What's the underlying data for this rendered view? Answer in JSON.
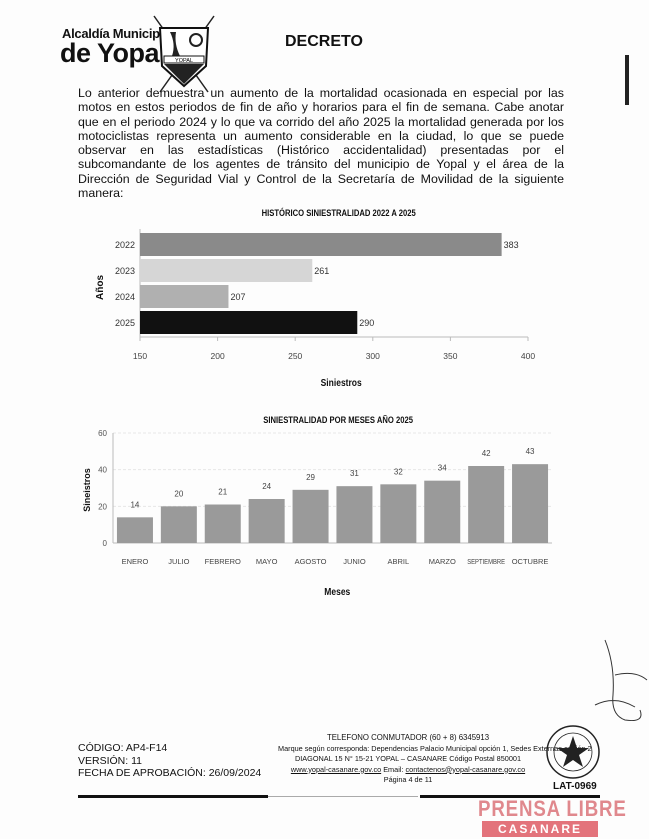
{
  "header": {
    "logo_line1": "Alcaldía Municipal",
    "logo_line2": "de Yopal",
    "shield_text": "YOPAL",
    "title": "DECRETO"
  },
  "body": {
    "paragraph": "Lo anterior demuestra un aumento de la mortalidad ocasionada en especial por las motos en estos periodos de fin de año y horarios para el fin de semana. Cabe anotar que en el periodo 2024 y lo que va corrido del año 2025 la mortalidad generada por los motociclistas representa un aumento considerable en la ciudad, lo que se puede observar en las estadísticas (Histórico accidentalidad) presentadas por el subcomandante de los agentes de tránsito del municipio de Yopal y el área de la Dirección de Seguridad Vial y Control de la Secretaría de Movilidad de la siguiente manera:"
  },
  "chart_data": [
    {
      "type": "bar",
      "orientation": "horizontal",
      "title": "HISTÓRICO SINIESTRALIDAD 2022 A 2025",
      "xlabel": "Siniestros",
      "ylabel": "Años",
      "categories": [
        "2022",
        "2023",
        "2024",
        "2025"
      ],
      "values": [
        383,
        261,
        207,
        290
      ],
      "colors": [
        "#8a8a8a",
        "#d6d6d6",
        "#b0b0b0",
        "#111111"
      ],
      "xlim": [
        150,
        400
      ],
      "xticks": [
        "150",
        "200",
        "250",
        "300",
        "350",
        "400"
      ],
      "grid": false
    },
    {
      "type": "bar",
      "title": "SINIESTRALIDAD POR MESES AÑO 2025",
      "xlabel": "Meses",
      "ylabel": "Sineistros",
      "categories": [
        "ENERO",
        "JULIO",
        "FEBRERO",
        "MAYO",
        "AGOSTO",
        "JUNIO",
        "ABRIL",
        "MARZO",
        "SEPTIEMBRE",
        "OCTUBRE"
      ],
      "values": [
        14,
        20,
        21,
        24,
        29,
        31,
        32,
        34,
        42,
        43
      ],
      "color": "#9a9a9a",
      "ylim": [
        0,
        60
      ],
      "yticks": [
        "0",
        "20",
        "40",
        "60"
      ],
      "grid": true
    }
  ],
  "footer": {
    "code": "CÓDIGO: AP4-F14",
    "version": "VERSIÓN: 11",
    "approval": "FECHA DE APROBACIÓN: 26/09/2024",
    "phone": "TELEFONO CONMUTADOR (60 + 8) 6345913",
    "extensions": "Marque según corresponda: Dependencias Palacio Municipal opción 1, Sedes Externas  opción 2",
    "address": "DIAGONAL 15 N° 15-21 YOPAL – CASANARE Código Postal 850001",
    "website": "www.yopal-casanare.gov.co",
    "email_label": "Email:",
    "email": "contactenos@yopal-casanare.gov.co",
    "page": "Página 4 de 11",
    "cert": "LAT-0969"
  },
  "watermark": {
    "line1": "PRENSA LIBRE",
    "line2": "CASANARE"
  }
}
